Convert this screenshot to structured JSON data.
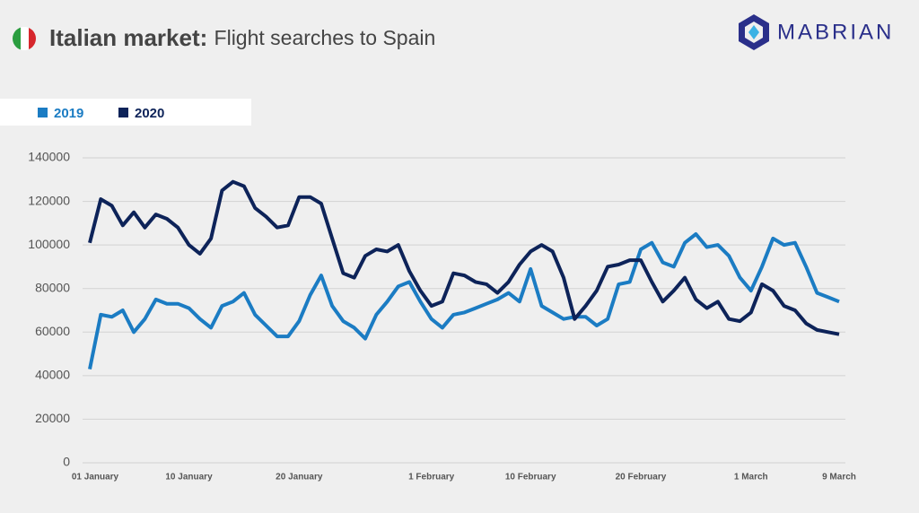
{
  "brand": "MABRIAN",
  "chart_data": {
    "type": "line",
    "title": "Italian market:",
    "subtitle": "Flight searches to Spain",
    "categories": [
      "01 January",
      null,
      null,
      null,
      null,
      null,
      null,
      null,
      null,
      "10 January",
      null,
      null,
      null,
      null,
      null,
      null,
      null,
      null,
      null,
      "20 January",
      null,
      null,
      null,
      null,
      null,
      null,
      null,
      null,
      null,
      null,
      null,
      "1 February",
      null,
      null,
      null,
      null,
      null,
      null,
      null,
      null,
      "10 February",
      null,
      null,
      null,
      null,
      null,
      null,
      null,
      null,
      null,
      "20 February",
      null,
      null,
      null,
      null,
      null,
      null,
      null,
      null,
      null,
      "1 March",
      null,
      null,
      null,
      null,
      null,
      null,
      null,
      "9 March"
    ],
    "series": [
      {
        "name": "2019",
        "color": "#1b7cc3",
        "values": [
          43000,
          68000,
          67000,
          70000,
          60000,
          66000,
          75000,
          73000,
          73000,
          71000,
          66000,
          62000,
          72000,
          74000,
          78000,
          68000,
          63000,
          58000,
          58000,
          65000,
          77000,
          86000,
          72000,
          65000,
          62000,
          57000,
          68000,
          74000,
          81000,
          83000,
          74000,
          66000,
          62000,
          68000,
          69000,
          71000,
          73000,
          75000,
          78000,
          74000,
          89000,
          72000,
          69000,
          66000,
          67000,
          67000,
          63000,
          66000,
          82000,
          83000,
          98000,
          101000,
          92000,
          90000,
          101000,
          105000,
          99000,
          100000,
          95000,
          85000,
          79000,
          90000,
          103000,
          100000,
          101000,
          90000,
          78000,
          76000,
          74000
        ]
      },
      {
        "name": "2020",
        "color": "#0d2359",
        "values": [
          101000,
          121000,
          118000,
          109000,
          115000,
          108000,
          114000,
          112000,
          108000,
          100000,
          96000,
          103000,
          125000,
          129000,
          127000,
          117000,
          113000,
          108000,
          109000,
          122000,
          122000,
          119000,
          103000,
          87000,
          85000,
          95000,
          98000,
          97000,
          100000,
          88000,
          79000,
          72000,
          74000,
          87000,
          86000,
          83000,
          82000,
          78000,
          83000,
          91000,
          97000,
          100000,
          97000,
          85000,
          66000,
          72000,
          79000,
          90000,
          91000,
          93000,
          93000,
          83000,
          74000,
          79000,
          85000,
          75000,
          71000,
          74000,
          66000,
          65000,
          69000,
          82000,
          79000,
          72000,
          70000,
          64000,
          61000,
          60000,
          59000
        ]
      }
    ],
    "ylim": [
      0,
      140000
    ],
    "yticks": [
      0,
      20000,
      40000,
      60000,
      80000,
      100000,
      120000,
      140000
    ],
    "grid": true
  }
}
